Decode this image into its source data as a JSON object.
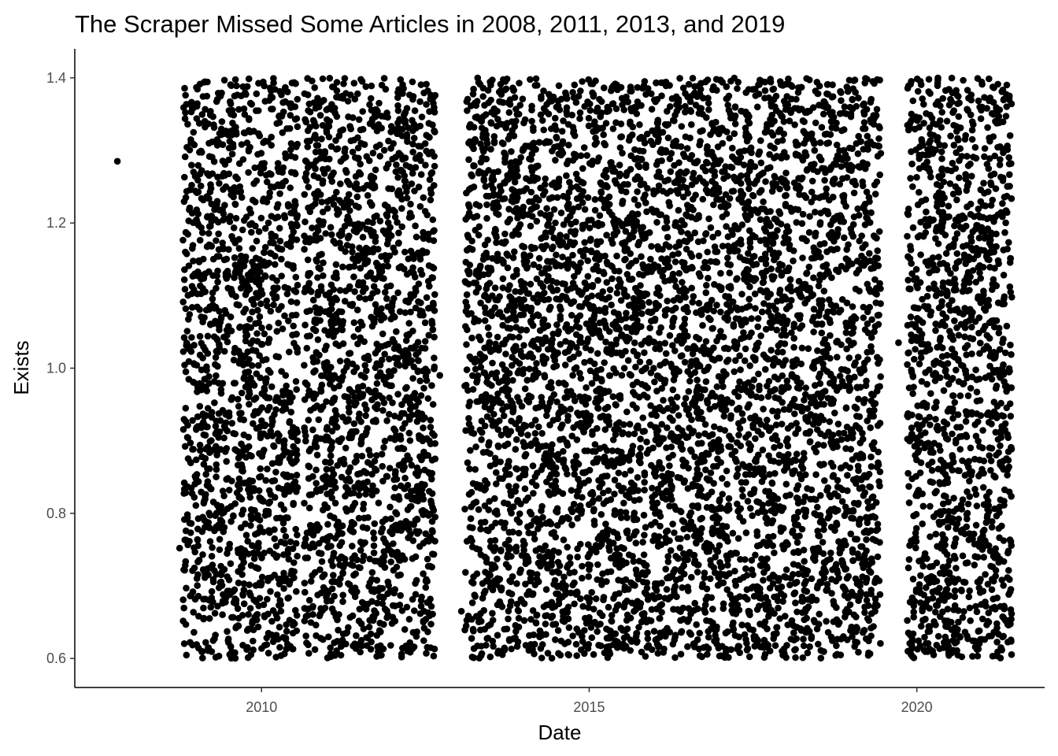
{
  "chart_data": {
    "type": "scatter",
    "title": "The Scraper Missed Some Articles in 2008, 2011, 2013, and 2019",
    "xlabel": "Date",
    "ylabel": "Exists",
    "xlim": [
      2007.15,
      2021.95
    ],
    "ylim": [
      0.56,
      1.44
    ],
    "x_ticks": [
      {
        "value": 2010,
        "label": "2010"
      },
      {
        "value": 2015,
        "label": "2015"
      },
      {
        "value": 2020,
        "label": "2020"
      }
    ],
    "y_ticks": [
      {
        "value": 0.6,
        "label": "0.6"
      },
      {
        "value": 0.8,
        "label": "0.8"
      },
      {
        "value": 1.0,
        "label": "1.0"
      },
      {
        "value": 1.2,
        "label": "1.2"
      },
      {
        "value": 1.4,
        "label": "1.4"
      }
    ],
    "jitter_y_range": [
      0.6,
      1.4
    ],
    "point_color": "#000000",
    "grid": false,
    "legend": "none",
    "data_segments": [
      {
        "x_start": 2008.8,
        "x_end": 2010.55,
        "count": 1400
      },
      {
        "x_start": 2010.65,
        "x_end": 2012.65,
        "count": 1600
      },
      {
        "x_start": 2013.1,
        "x_end": 2019.45,
        "count": 5200
      },
      {
        "x_start": 2019.85,
        "x_end": 2021.45,
        "count": 1300
      }
    ],
    "points": [
      {
        "x": 2007.8,
        "y": 1.285
      },
      {
        "x": 2008.75,
        "y": 0.752
      },
      {
        "x": 2012.72,
        "y": 0.99
      },
      {
        "x": 2013.05,
        "y": 0.665
      },
      {
        "x": 2019.72,
        "y": 1.035
      }
    ]
  }
}
